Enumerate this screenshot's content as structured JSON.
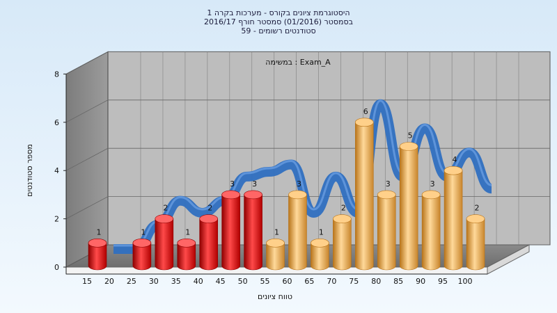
{
  "chart_data": {
    "type": "bar",
    "title_lines": [
      "היסטוגרמת ציונים בקורס - מערכות בקרה 1",
      "בסמסטר  (01/2016)  סמסטר חורף 2016/17",
      "סטודנטים רשומים - 59"
    ],
    "annotation": "במשימה : Exam_A",
    "xlabel": "טווח ציונים",
    "ylabel": "מספר סטודנטים",
    "x_ticks": [
      "15",
      "20",
      "25",
      "30",
      "35",
      "40",
      "45",
      "50",
      "55",
      "60",
      "65",
      "70",
      "75",
      "80",
      "85",
      "90",
      "95",
      "100"
    ],
    "y_ticks": [
      "0",
      "2",
      "4",
      "6",
      "8"
    ],
    "ylim": [
      0,
      8
    ],
    "grid": true,
    "bars": [
      {
        "x": "15",
        "value": 1,
        "color": "red"
      },
      {
        "x": "25",
        "value": 1,
        "color": "red"
      },
      {
        "x": "30",
        "value": 2,
        "color": "red"
      },
      {
        "x": "35",
        "value": 1,
        "color": "red"
      },
      {
        "x": "40",
        "value": 2,
        "color": "red"
      },
      {
        "x": "45",
        "value": 3,
        "color": "red"
      },
      {
        "x": "50",
        "value": 3,
        "color": "red"
      },
      {
        "x": "55",
        "value": 1,
        "color": "orange"
      },
      {
        "x": "60",
        "value": 3,
        "color": "orange"
      },
      {
        "x": "65",
        "value": 1,
        "color": "orange"
      },
      {
        "x": "70",
        "value": 2,
        "color": "orange"
      },
      {
        "x": "75",
        "value": 6,
        "color": "orange"
      },
      {
        "x": "80",
        "value": 3,
        "color": "orange"
      },
      {
        "x": "85",
        "value": 5,
        "color": "orange"
      },
      {
        "x": "90",
        "value": 3,
        "color": "orange"
      },
      {
        "x": "95",
        "value": 4,
        "color": "orange"
      },
      {
        "x": "100",
        "value": 2,
        "color": "orange"
      }
    ],
    "ribbon": {
      "color": "#2f6fc0",
      "values": [
        0,
        0,
        1,
        2,
        1.5,
        2,
        3,
        3.2,
        3.5,
        1.5,
        3,
        1.5,
        6,
        3,
        5,
        3,
        4,
        2.5
      ]
    },
    "colors": {
      "red": [
        "#8e0000",
        "#ff4a4a",
        "#c00000",
        "#ff6666"
      ],
      "orange": [
        "#b8741a",
        "#ffd99a",
        "#d89a3c",
        "#ffd08a"
      ]
    }
  }
}
